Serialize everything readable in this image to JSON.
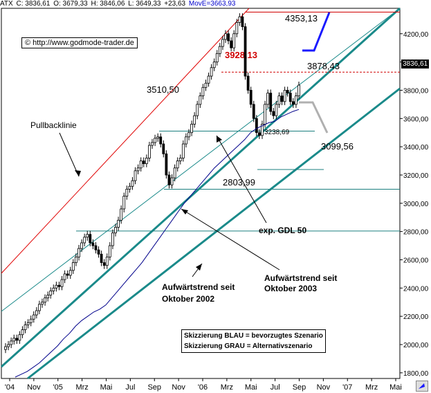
{
  "header": {
    "symbol": "ATX",
    "close_label": "C: 3836,61",
    "open_label": "O: 3679,33",
    "high_label": "H: 3846,06",
    "low_label": "L: 3649,33",
    "change_label": "+23,63",
    "ma_label": "MovE=3663,93"
  },
  "copyright": "© http://www.godmode-trader.de",
  "last_value": "3836,61",
  "legend": {
    "line1": "Skizzierung BLAU = bevorzugtes Szenario",
    "line2": "Skizzierung GRAU = Alternativszenario"
  },
  "chart_data": {
    "type": "candlestick",
    "y_ticks": [
      1800,
      2000,
      2200,
      2400,
      2600,
      2800,
      3000,
      3200,
      3400,
      3600,
      3800,
      4000,
      4200
    ],
    "y_tick_labels": [
      "1800,00",
      "2000,00",
      "2200,00",
      "2400,00",
      "2600,00",
      "2800,00",
      "3000,00",
      "3200,00",
      "3400,00",
      "3600,00",
      "3800,00",
      "4000,00",
      "4200,00"
    ],
    "ylim": [
      1760,
      4380
    ],
    "x_tick_labels": [
      "'04",
      "Nov",
      "'05",
      "Mrz",
      "Mai",
      "Jul",
      "Sep",
      "Nov",
      "'06",
      "Mrz",
      "Mai",
      "Jul",
      "Sep",
      "Nov",
      "'07",
      "Mrz",
      "Mai"
    ],
    "levels": [
      {
        "value": 4353.13,
        "label": "4353,13",
        "color": "#d00000",
        "style": "solid"
      },
      {
        "value": 3928.13,
        "label": "3928,13",
        "color": "#d00000",
        "style": "dashed"
      },
      {
        "value": 3878.43,
        "label": "3878,43",
        "color": "#000000",
        "style": "none"
      },
      {
        "value": 3510.5,
        "label": "3510,50",
        "color": "#1a7f7f",
        "style": "solid"
      },
      {
        "value": 3238.69,
        "label": "3238,69",
        "color": "#1a7f7f",
        "style": "solid"
      },
      {
        "value": 3099.56,
        "label": "3099,56",
        "color": "#1a7f7f",
        "style": "solid"
      },
      {
        "value": 2803.99,
        "label": "2803,99",
        "color": "#1a7f7f",
        "style": "solid"
      }
    ],
    "annotations": [
      "Pullbacklinie",
      "exp. GDL 50",
      "Aufwärtstrend seit Oktober 2003",
      "Aufwärtstrend seit Oktober 2002"
    ],
    "colors": {
      "candle_up": "#ffffff",
      "candle_down": "#000000",
      "ma": "#00008b",
      "trend": "#1a8a8a",
      "pullback": "#e00000",
      "blue_scenario": "#1a1aff",
      "grey_scenario": "#b0b0b0"
    },
    "series": [
      {
        "type": "candles",
        "values": [
          1985,
          2000,
          2025,
          2045,
          2030,
          2070,
          2105,
          2140,
          2155,
          2180,
          2210,
          2240,
          2285,
          2300,
          2330,
          2350,
          2380,
          2400,
          2420,
          2410,
          2460,
          2500,
          2490,
          2525,
          2580,
          2620,
          2680,
          2720,
          2760,
          2780,
          2720,
          2700,
          2670,
          2640,
          2580,
          2560,
          2620,
          2700,
          2790,
          2830,
          2880,
          2960,
          3050,
          3100,
          3120,
          3160,
          3230,
          3250,
          3300,
          3280,
          3320,
          3410,
          3430,
          3460,
          3470,
          3420,
          3350,
          3200,
          3130,
          3180,
          3250,
          3300,
          3320,
          3420,
          3470,
          3500,
          3560,
          3620,
          3700,
          3760,
          3820,
          3850,
          3900,
          3960,
          4000,
          4060,
          4110,
          4160,
          4200,
          4150,
          4100,
          4200,
          4280,
          4320,
          4250,
          3900,
          3800,
          3700,
          3600,
          3500,
          3480,
          3560,
          3700,
          3780,
          3650,
          3620,
          3700,
          3760,
          3720,
          3800,
          3780,
          3720,
          3700,
          3760,
          3836
        ]
      },
      {
        "type": "ma",
        "name": "GDL 50",
        "values": [
          1770,
          1790,
          1810,
          1840,
          1870,
          1910,
          1950,
          1990,
          2040,
          2080,
          2130,
          2170,
          2200,
          2230,
          2250,
          2280,
          2330,
          2380,
          2430,
          2480,
          2530,
          2580,
          2640,
          2700,
          2760,
          2820,
          2880,
          2940,
          3000,
          3050,
          3100,
          3150,
          3200,
          3250,
          3290,
          3330,
          3370,
          3410,
          3450,
          3500,
          3530,
          3550,
          3570,
          3580,
          3610,
          3630,
          3650,
          3664
        ]
      }
    ]
  }
}
